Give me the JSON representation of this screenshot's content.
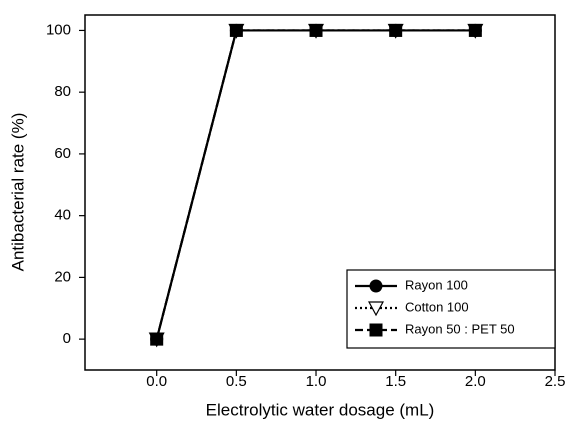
{
  "chart_data": {
    "type": "line",
    "xlabel": "Electrolytic water dosage (mL)",
    "ylabel": "Antibacterial rate (%)",
    "x": [
      0,
      0.5,
      1,
      1.5,
      2
    ],
    "series": [
      {
        "name": "Rayon 100",
        "color": "#000000",
        "marker": "circle",
        "linestyle": "solid",
        "values": [
          0,
          100,
          100,
          100,
          100
        ]
      },
      {
        "name": "Cotton 100",
        "color": "#000000",
        "marker": "triangle-down",
        "linestyle": "dotted",
        "values": [
          0,
          100,
          100,
          100,
          100
        ]
      },
      {
        "name": "Rayon 50 : PET 50",
        "color": "#000000",
        "marker": "square",
        "linestyle": "dashed",
        "values": [
          0,
          100,
          100,
          100,
          100
        ]
      }
    ],
    "xlim": [
      -0.45,
      2.5
    ],
    "ylim": [
      -10,
      105
    ],
    "xticks": [
      {
        "value": 0,
        "label": "0.0"
      },
      {
        "value": 0.5,
        "label": "0.5"
      },
      {
        "value": 1,
        "label": "1.0"
      },
      {
        "value": 1.5,
        "label": "1.5"
      },
      {
        "value": 2,
        "label": "2.0"
      },
      {
        "value": 2.5,
        "label": "2.5"
      }
    ],
    "yticks": [
      0,
      20,
      40,
      60,
      80,
      100
    ],
    "legend": "lower right"
  }
}
